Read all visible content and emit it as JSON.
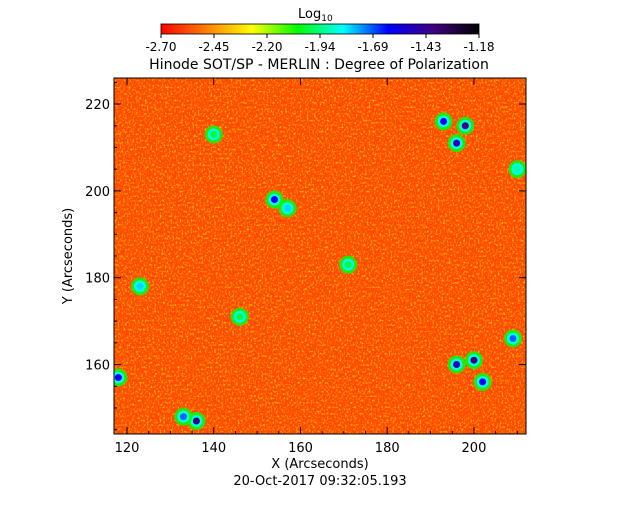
{
  "chart_data": {
    "type": "heatmap",
    "title": "Hinode SOT/SP - MERLIN : Degree of Polarization",
    "footer": "20-Oct-2017 09:32:05.193",
    "xlabel": "X (Arcseconds)",
    "ylabel": "Y (Arcseconds)",
    "xlim": [
      117,
      212
    ],
    "ylim": [
      144,
      226
    ],
    "xticks": [
      {
        "value": 120,
        "label": "120"
      },
      {
        "value": 140,
        "label": "140"
      },
      {
        "value": 160,
        "label": "160"
      },
      {
        "value": 180,
        "label": "180"
      },
      {
        "value": 200,
        "label": "200"
      }
    ],
    "yticks": [
      {
        "value": 160,
        "label": "160"
      },
      {
        "value": 180,
        "label": "180"
      },
      {
        "value": 200,
        "label": "200"
      },
      {
        "value": 220,
        "label": "220"
      }
    ],
    "colorbar": {
      "title_main": "Log",
      "title_sub": "10",
      "range": [
        -2.7,
        -1.18
      ],
      "ticks": [
        "-2.70",
        "-2.45",
        "-2.20",
        "-1.94",
        "-1.69",
        "-1.43",
        "-1.18"
      ],
      "colors": [
        "#ff0000",
        "#ff8000",
        "#ffff00",
        "#00ff00",
        "#00ffff",
        "#0000ff",
        "#400080",
        "#000000"
      ]
    },
    "background_color": "#ff4a00",
    "regions": [
      {
        "x": 198,
        "y": 215,
        "value": -1.4
      },
      {
        "x": 193,
        "y": 216,
        "value": -1.6
      },
      {
        "x": 196,
        "y": 211,
        "value": -1.5
      },
      {
        "x": 154,
        "y": 198,
        "value": -1.6
      },
      {
        "x": 157,
        "y": 196,
        "value": -1.8
      },
      {
        "x": 200,
        "y": 161,
        "value": -1.4
      },
      {
        "x": 196,
        "y": 160,
        "value": -1.5
      },
      {
        "x": 202,
        "y": 156,
        "value": -1.6
      },
      {
        "x": 209,
        "y": 166,
        "value": -1.7
      },
      {
        "x": 136,
        "y": 147,
        "value": -1.4
      },
      {
        "x": 133,
        "y": 148,
        "value": -1.7
      },
      {
        "x": 118,
        "y": 157,
        "value": -1.6
      },
      {
        "x": 123,
        "y": 178,
        "value": -1.8
      },
      {
        "x": 171,
        "y": 183,
        "value": -2.0
      },
      {
        "x": 146,
        "y": 171,
        "value": -2.0
      },
      {
        "x": 210,
        "y": 205,
        "value": -1.9
      },
      {
        "x": 140,
        "y": 213,
        "value": -2.0
      }
    ]
  }
}
